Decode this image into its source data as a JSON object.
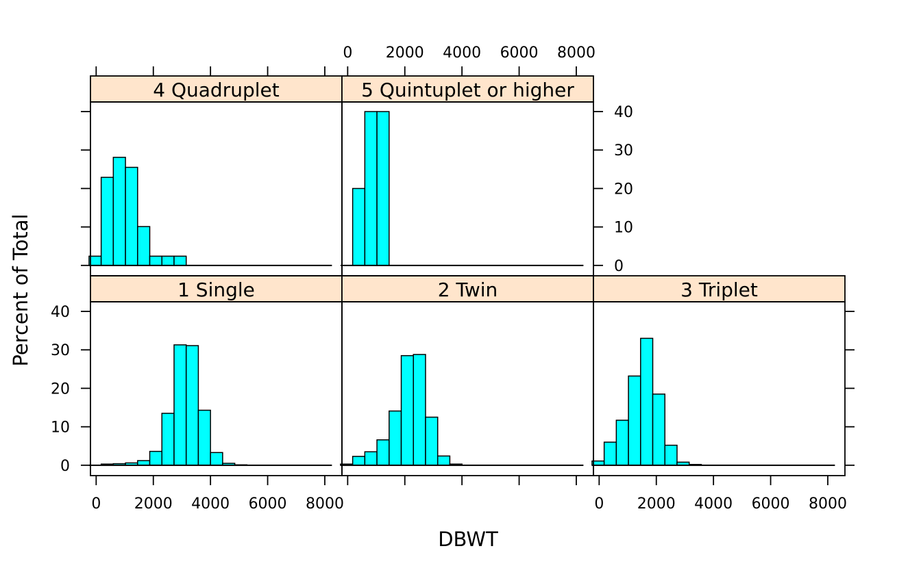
{
  "chart_data": {
    "type": "histogram",
    "xlabel": "DBWT",
    "ylabel": "Percent of Total",
    "xlim": [
      -200,
      8600
    ],
    "ylim": [
      -2.7,
      42.5
    ],
    "x_ticks": [
      0,
      2000,
      4000,
      6000,
      8000
    ],
    "y_ticks": [
      0,
      10,
      20,
      30,
      40
    ],
    "bin_width": 425,
    "bin_start": -250,
    "colors": {
      "bar_fill": "#00FFFF",
      "strip_fill": "#FFE5CC",
      "line": "#000000"
    },
    "panels": [
      {
        "name": "1 Single",
        "values": [
          0,
          0.3,
          0.4,
          0.6,
          1.2,
          3.6,
          13.5,
          31.3,
          31.1,
          14.3,
          3.3,
          0.5,
          0.1,
          0,
          0,
          0,
          0,
          0,
          0,
          0
        ]
      },
      {
        "name": "2 Twin",
        "values": [
          0.3,
          2.3,
          3.5,
          6.6,
          14.1,
          28.5,
          28.8,
          12.5,
          2.4,
          0.3,
          0,
          0,
          0,
          0,
          0,
          0,
          0,
          0,
          0,
          0
        ]
      },
      {
        "name": "3 Triplet",
        "values": [
          1.1,
          6.0,
          11.7,
          23.2,
          33.0,
          18.5,
          5.2,
          0.8,
          0.2,
          0,
          0,
          0,
          0,
          0,
          0,
          0,
          0,
          0,
          0,
          0
        ]
      },
      {
        "name": "4 Quadruplet",
        "values": [
          2.4,
          22.9,
          28.1,
          25.5,
          10.1,
          2.4,
          2.4,
          2.4,
          0,
          0,
          0,
          0,
          0,
          0,
          0,
          0,
          0,
          0,
          0,
          0
        ]
      },
      {
        "name": "5 Quintuplet or higher",
        "values": [
          0,
          20.0,
          40.0,
          40.0,
          0,
          0,
          0,
          0,
          0,
          0,
          0,
          0,
          0,
          0,
          0,
          0,
          0,
          0,
          0,
          0
        ]
      }
    ]
  }
}
